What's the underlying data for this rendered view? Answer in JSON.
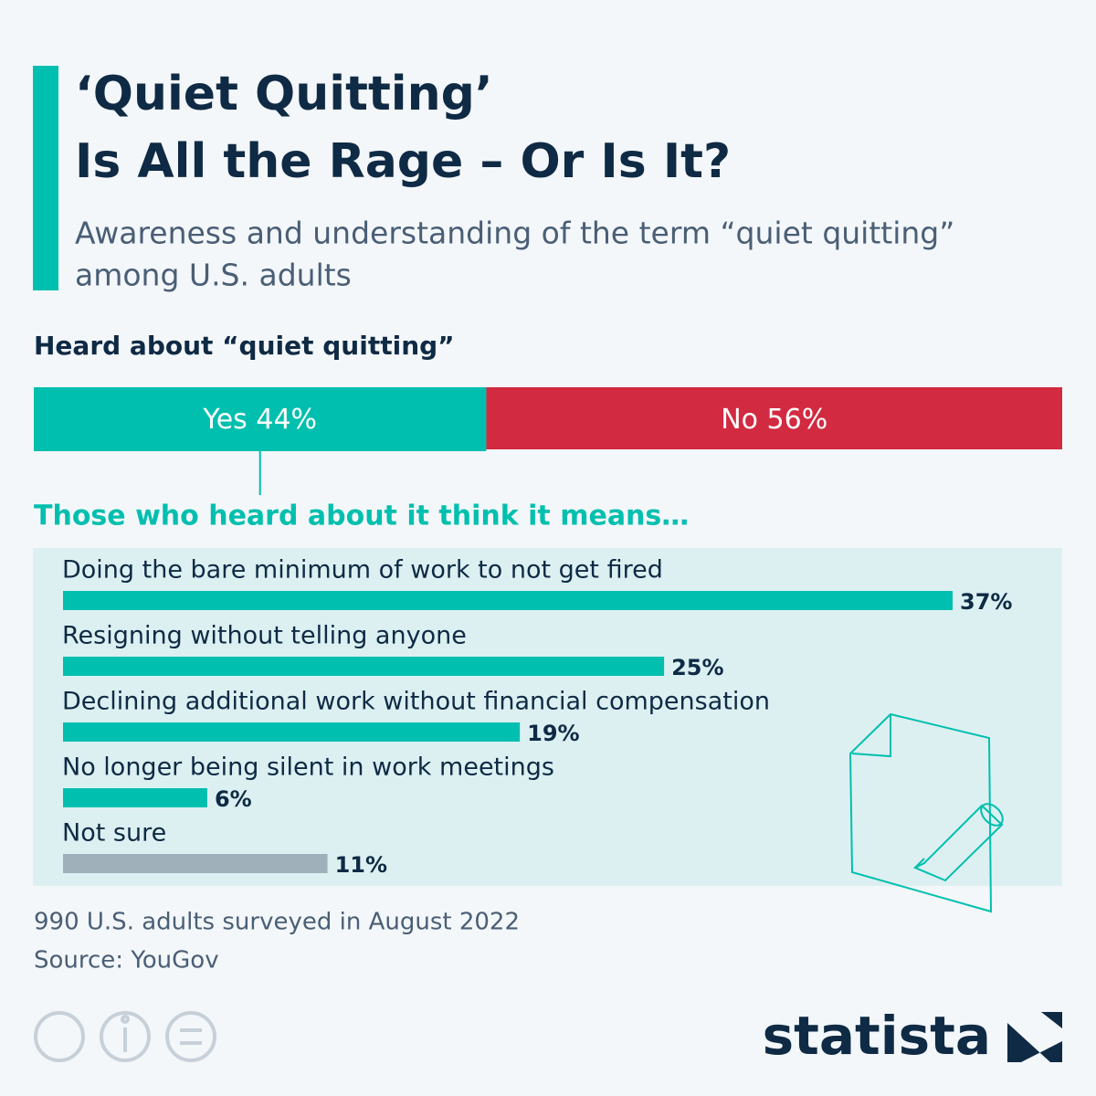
{
  "header": {
    "title": [
      "‘Quiet Quitting’",
      "Is All the Rage – Or Is It?"
    ],
    "subtitle": [
      "Awareness and understanding of the term “quiet quitting”",
      "among U.S. adults"
    ]
  },
  "chart_data": [
    {
      "type": "stacked-bar",
      "title": "Heard about “quiet quitting”",
      "series": [
        {
          "name": "Yes",
          "color": "#00bfae",
          "values": [
            44
          ],
          "value_labels": [
            "44%"
          ]
        },
        {
          "name": "No",
          "color": "#d22a40",
          "values": [
            56
          ],
          "value_labels": [
            "56%"
          ]
        }
      ],
      "xlim": [
        0,
        100
      ]
    },
    {
      "type": "hbar",
      "title": "Those who heard about it think it means…",
      "categories": [
        "Doing the bare minimum of work to not get fired",
        "Resigning without telling anyone",
        "Declining additional work without financial compensation",
        "No longer being silent in work meetings",
        "Not sure"
      ],
      "values": [
        37,
        25,
        19,
        6,
        11
      ],
      "value_labels": [
        "37%",
        "25%",
        "19%",
        "6%",
        "11%"
      ],
      "colors": [
        "#00bfae",
        "#00bfae",
        "#00bfae",
        "#00bfae",
        "#9fb0bb"
      ],
      "xlim": [
        0,
        37
      ]
    }
  ],
  "footer": {
    "note": "990 U.S. adults surveyed in August 2022",
    "source": "Source: YouGov",
    "brand": "statista"
  }
}
